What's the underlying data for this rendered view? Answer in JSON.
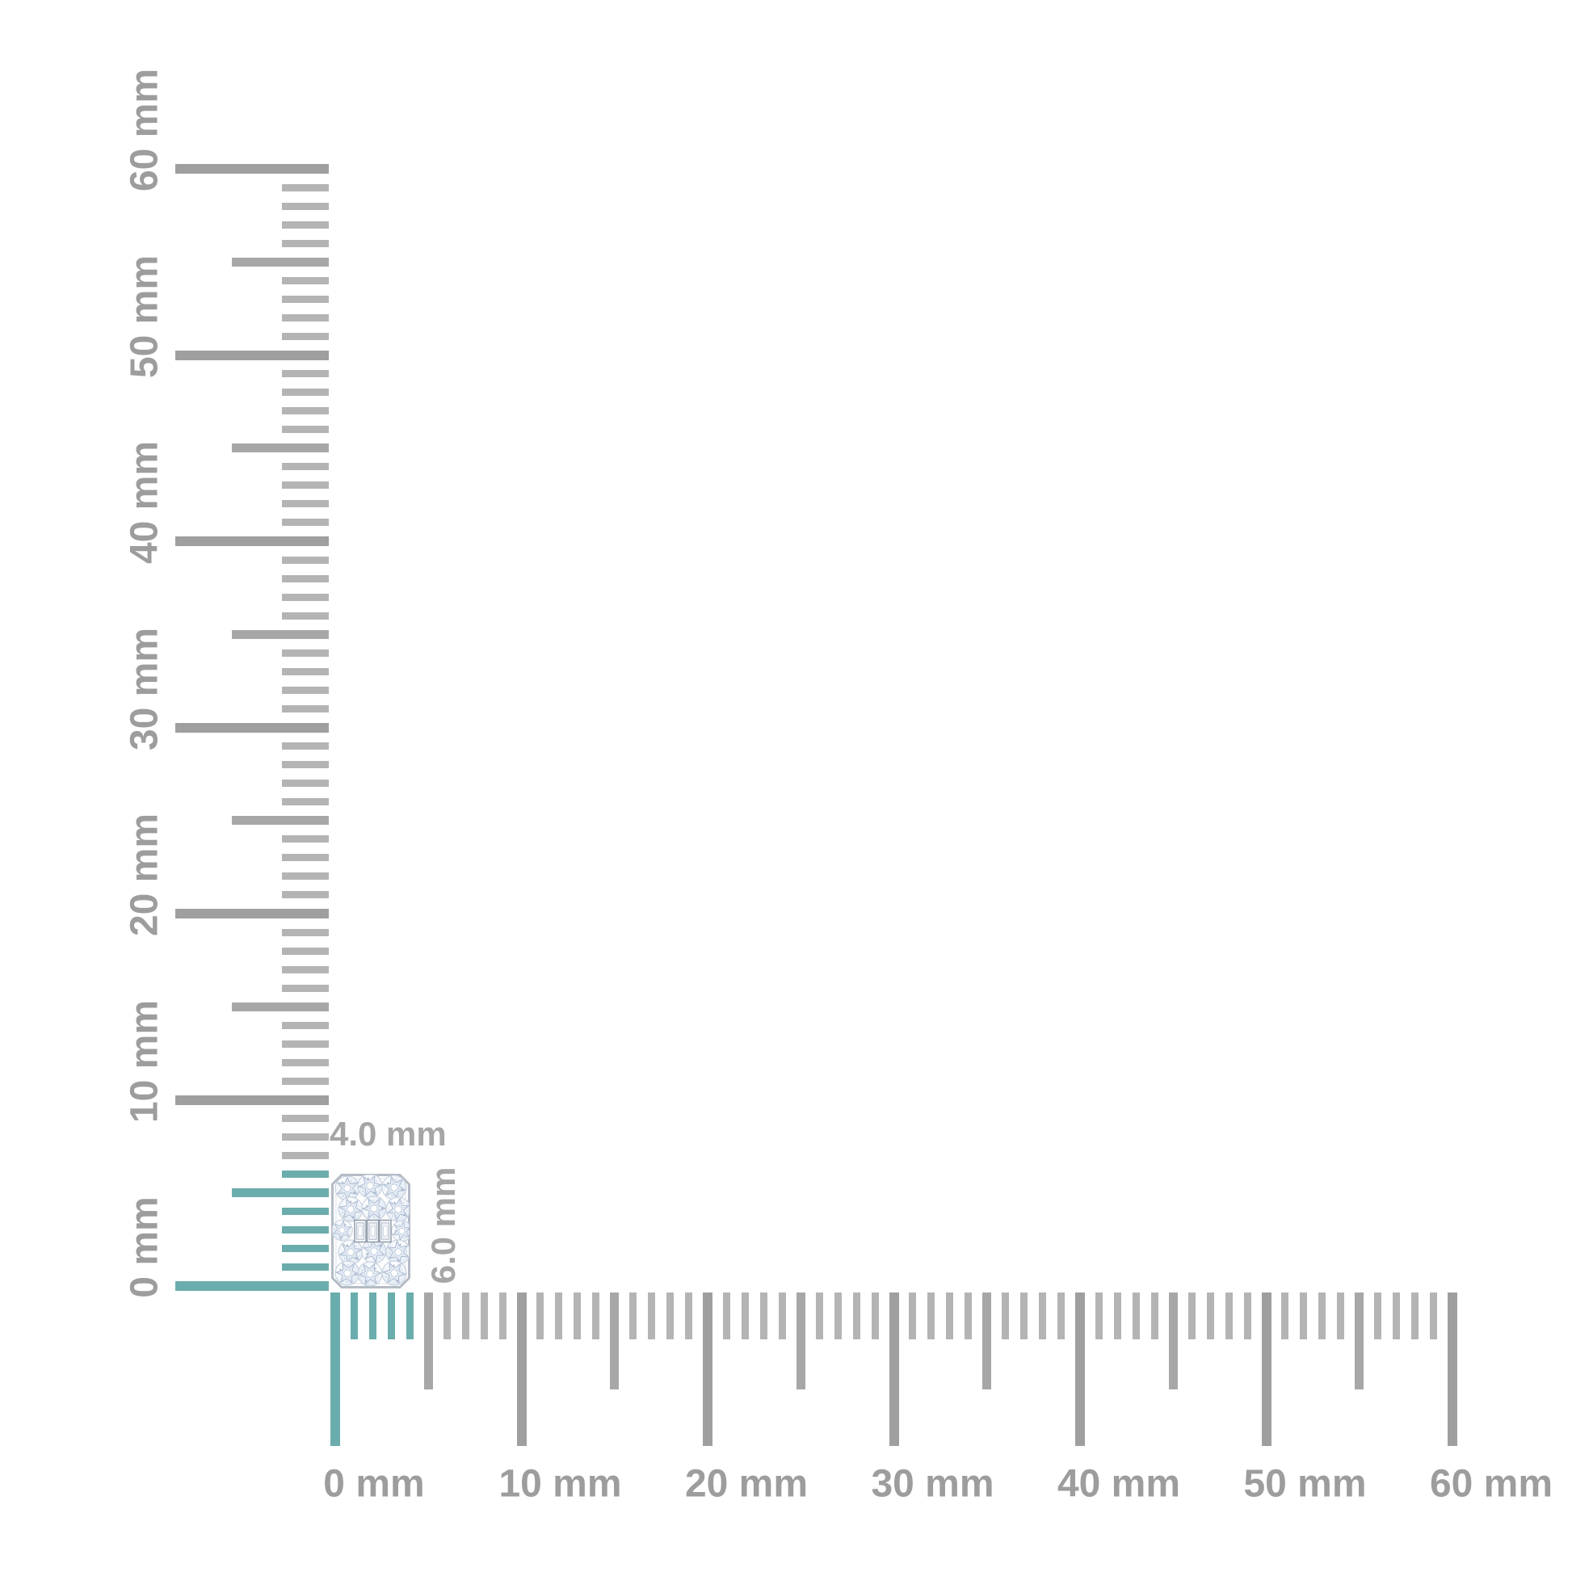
{
  "page": {
    "background": "#ffffff"
  },
  "item": {
    "description": "emerald-shape diamond cluster with three center baguettes",
    "width_label": "4.0 mm",
    "height_label": "6.0 mm",
    "width_mm": 4.0,
    "height_mm": 6.0,
    "label_color": "#a6a6a6",
    "frame_color": "#b4bbc5",
    "stone_facet_color": "#a3b3cc"
  },
  "rulers": {
    "unit": "mm",
    "colors": {
      "major": "#9f9f9f",
      "medium": "#a7a7a7",
      "minor": "#b4b4b4",
      "highlight": "#6badac",
      "label": "#9d9d9d"
    },
    "horizontal": {
      "min_mm": 0,
      "max_mm": 60,
      "minor_step_mm": 1,
      "medium_step_mm": 5,
      "major_step_mm": 10,
      "highlight_to_mm": 4,
      "major_labels": [
        "0 mm",
        "10 mm",
        "20 mm",
        "30 mm",
        "40 mm",
        "50 mm",
        "60 mm"
      ]
    },
    "vertical": {
      "min_mm": 0,
      "max_mm": 60,
      "minor_step_mm": 1,
      "medium_step_mm": 5,
      "major_step_mm": 10,
      "highlight_to_mm": 6,
      "major_labels": [
        "0 mm",
        "10 mm",
        "20 mm",
        "30 mm",
        "40 mm",
        "50 mm",
        "60 mm"
      ]
    }
  }
}
